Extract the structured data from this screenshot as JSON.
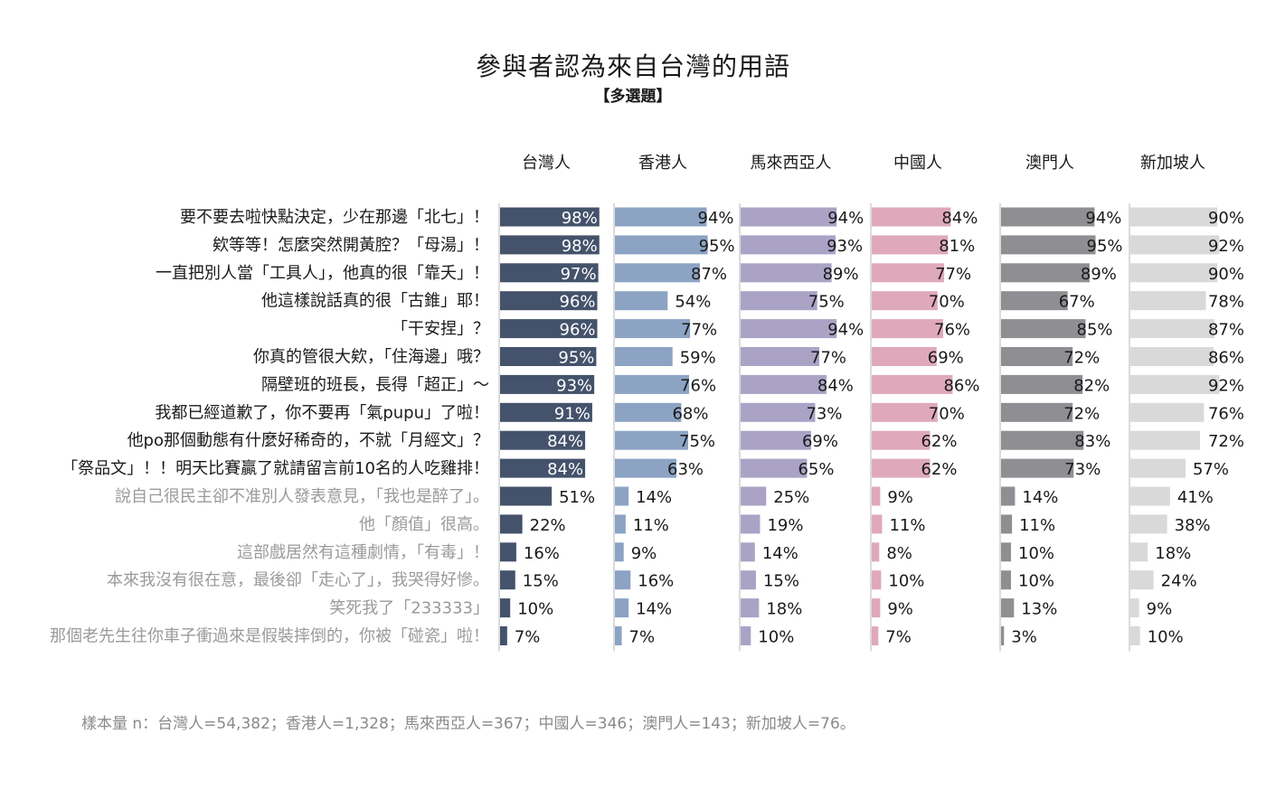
{
  "title": "參與者認為來自台灣的用語",
  "subtitle": "【多選題】",
  "footnote": "樣本量 n：台灣人=54,382；香港人=1,328；馬來西亞人=367；中國人=346；澳門人=143；新加坡人=76。",
  "chart_data": {
    "type": "bar",
    "orientation": "horizontal",
    "title": "參與者認為來自台灣的用語",
    "subtitle": "【多選題】",
    "unit": "%",
    "xlim": [
      0,
      100
    ],
    "grid": false,
    "categories": [
      "要不要去啦快點決定，少在那邊「北七」！",
      "欸等等！怎麼突然開黃腔？「母湯」！",
      "一直把別人當「工具人」，他真的很「靠夭」！",
      "他這樣說話真的很「古錐」耶！",
      "「干安捏」？",
      "你真的管很大欸，「住海邊」哦？",
      "隔壁班的班長，長得「超正」～",
      "我都已經道歉了，你不要再「氣pupu」了啦！",
      "他po那個動態有什麼好稀奇的，不就「月經文」？",
      "「祭品文」！！明天比賽贏了就請留言前10名的人吃雞排！",
      "說自己很民主卻不准別人發表意見，「我也是醉了」。",
      "他「顏值」很高。",
      "這部戲居然有這種劇情，「有毒」！",
      "本來我沒有很在意，最後卻「走心了」，我哭得好慘。",
      "笑死我了「233333」",
      "那個老先生往你車子衝過來是假裝摔倒的，你被「碰瓷」啦！"
    ],
    "highlighted_count": 10,
    "label_colors": {
      "highlighted": "#1a1a1a",
      "muted": "#9a9a9a"
    },
    "series": [
      {
        "name": "台灣人",
        "color": "#44526b",
        "values": [
          98,
          98,
          97,
          96,
          96,
          95,
          93,
          91,
          84,
          84,
          51,
          22,
          16,
          15,
          10,
          7
        ]
      },
      {
        "name": "香港人",
        "color": "#8ca3c4",
        "values": [
          94,
          95,
          87,
          54,
          77,
          59,
          76,
          68,
          75,
          63,
          14,
          11,
          9,
          16,
          14,
          7
        ]
      },
      {
        "name": "馬來西亞人",
        "color": "#aaa3c6",
        "values": [
          94,
          93,
          89,
          75,
          94,
          77,
          84,
          73,
          69,
          65,
          25,
          19,
          14,
          15,
          18,
          10
        ]
      },
      {
        "name": "中國人",
        "color": "#dfa9bb",
        "values": [
          84,
          81,
          77,
          70,
          76,
          69,
          86,
          70,
          62,
          62,
          9,
          11,
          8,
          10,
          9,
          7
        ]
      },
      {
        "name": "澳門人",
        "color": "#8f8f93",
        "values": [
          94,
          95,
          89,
          67,
          85,
          72,
          82,
          72,
          83,
          73,
          14,
          11,
          10,
          10,
          13,
          3
        ]
      },
      {
        "name": "新加坡人",
        "color": "#d9d9d9",
        "values": [
          90,
          92,
          90,
          78,
          87,
          86,
          92,
          76,
          72,
          57,
          41,
          38,
          18,
          24,
          9,
          10
        ]
      }
    ]
  }
}
